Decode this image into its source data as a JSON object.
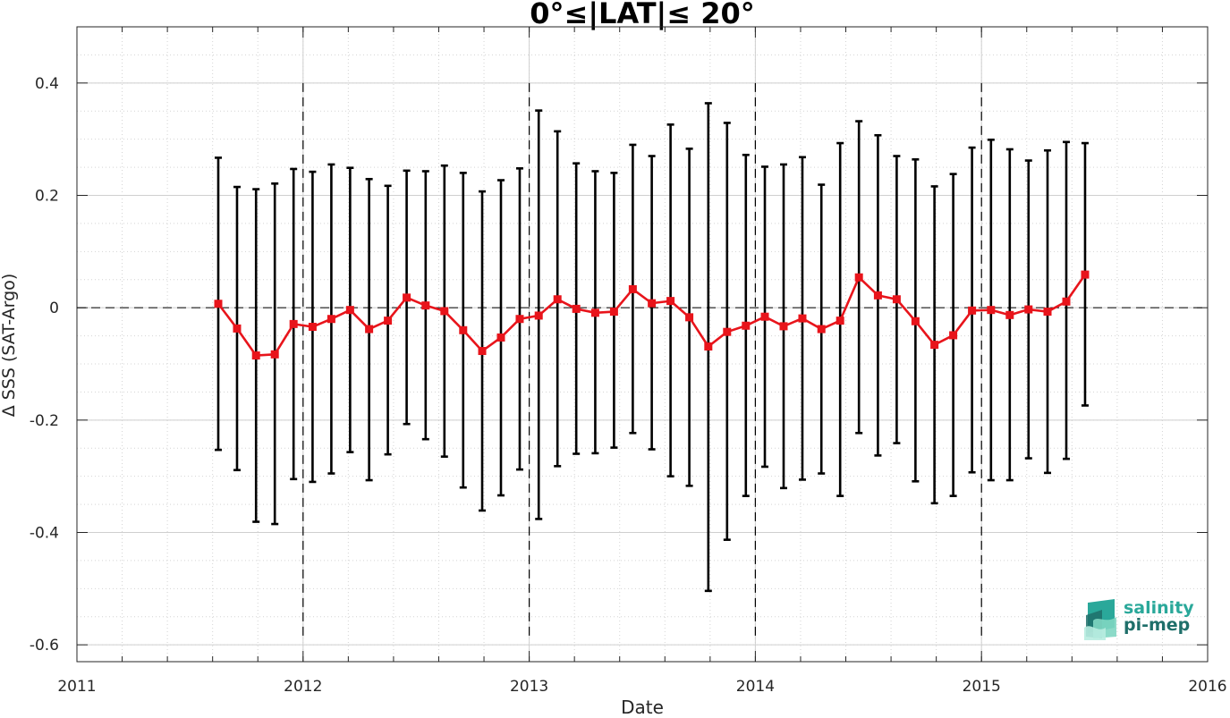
{
  "chart_data": {
    "type": "line",
    "title": "0°≤|LAT|≤ 20°",
    "xlabel": "Date",
    "ylabel": "Δ SSS (SAT-Argo)",
    "xlim": [
      2011,
      2016
    ],
    "ylim": [
      -0.63,
      0.5
    ],
    "x_ticks": [
      "2011",
      "2012",
      "2013",
      "2014",
      "2015",
      "2016"
    ],
    "y_ticks": [
      "0.4",
      "0.2",
      "0",
      "-0.2",
      "-0.4",
      "-0.6"
    ],
    "y_tick_values": [
      0.4,
      0.2,
      0,
      -0.2,
      -0.4,
      -0.6
    ],
    "year_divider_lines": [
      "2012",
      "2013",
      "2014",
      "2015"
    ],
    "grid": true,
    "minor_grid": true,
    "line_color": "#e8141b",
    "errorbar_color": "#000000",
    "zero_line": true,
    "series": [
      {
        "x": [
          "2011-08",
          "2011-09",
          "2011-10",
          "2011-11",
          "2011-12",
          "2012-01",
          "2012-02",
          "2012-03",
          "2012-04",
          "2012-05",
          "2012-06",
          "2012-07",
          "2012-08",
          "2012-09",
          "2012-10",
          "2012-11",
          "2012-12",
          "2013-01",
          "2013-02",
          "2013-03",
          "2013-04",
          "2013-05",
          "2013-06",
          "2013-07",
          "2013-08",
          "2013-09",
          "2013-10",
          "2013-11",
          "2013-12",
          "2014-01",
          "2014-02",
          "2014-03",
          "2014-04",
          "2014-05",
          "2014-06",
          "2014-07",
          "2014-08",
          "2014-09",
          "2014-10",
          "2014-11",
          "2014-12",
          "2015-01",
          "2015-02",
          "2015-03",
          "2015-04",
          "2015-05",
          "2015-06"
        ],
        "t": [
          2011.625,
          2011.708,
          2011.792,
          2011.875,
          2011.958,
          2012.042,
          2012.125,
          2012.208,
          2012.292,
          2012.375,
          2012.458,
          2012.542,
          2012.625,
          2012.708,
          2012.792,
          2012.875,
          2012.958,
          2013.042,
          2013.125,
          2013.208,
          2013.292,
          2013.375,
          2013.458,
          2013.542,
          2013.625,
          2013.708,
          2013.792,
          2013.875,
          2013.958,
          2014.042,
          2014.125,
          2014.208,
          2014.292,
          2014.375,
          2014.458,
          2014.542,
          2014.625,
          2014.708,
          2014.792,
          2014.875,
          2014.958,
          2015.042,
          2015.125,
          2015.208,
          2015.292,
          2015.375,
          2015.458
        ],
        "y": [
          0.007,
          -0.037,
          -0.085,
          -0.083,
          -0.029,
          -0.034,
          -0.02,
          -0.004,
          -0.038,
          -0.023,
          0.018,
          0.004,
          -0.006,
          -0.04,
          -0.077,
          -0.053,
          -0.02,
          -0.014,
          0.015,
          -0.002,
          -0.009,
          -0.007,
          0.033,
          0.008,
          0.012,
          -0.017,
          -0.069,
          -0.043,
          -0.032,
          -0.016,
          -0.033,
          -0.019,
          -0.038,
          -0.023,
          0.054,
          0.022,
          0.015,
          -0.024,
          -0.066,
          -0.049,
          -0.005,
          -0.004,
          -0.013,
          -0.003,
          -0.007,
          0.011,
          0.059
        ],
        "y_upper": [
          0.267,
          0.215,
          0.211,
          0.221,
          0.247,
          0.242,
          0.255,
          0.249,
          0.229,
          0.217,
          0.244,
          0.243,
          0.253,
          0.24,
          0.207,
          0.227,
          0.248,
          0.351,
          0.314,
          0.257,
          0.243,
          0.24,
          0.29,
          0.27,
          0.326,
          0.283,
          0.364,
          0.329,
          0.272,
          0.251,
          0.255,
          0.268,
          0.219,
          0.293,
          0.332,
          0.307,
          0.27,
          0.264,
          0.216,
          0.238,
          0.285,
          0.299,
          0.282,
          0.262,
          0.28,
          0.295,
          0.293
        ],
        "y_lower": [
          -0.253,
          -0.289,
          -0.381,
          -0.385,
          -0.305,
          -0.31,
          -0.295,
          -0.257,
          -0.307,
          -0.261,
          -0.207,
          -0.234,
          -0.265,
          -0.32,
          -0.361,
          -0.334,
          -0.288,
          -0.376,
          -0.282,
          -0.26,
          -0.259,
          -0.249,
          -0.223,
          -0.252,
          -0.3,
          -0.317,
          -0.504,
          -0.413,
          -0.335,
          -0.283,
          -0.321,
          -0.306,
          -0.295,
          -0.335,
          -0.223,
          -0.263,
          -0.241,
          -0.309,
          -0.348,
          -0.335,
          -0.293,
          -0.307,
          -0.307,
          -0.268,
          -0.294,
          -0.269,
          -0.174
        ]
      }
    ]
  },
  "logo": {
    "line1": "salinity",
    "line2": "pi-mep",
    "colors": [
      "#2aa89a",
      "#1f6f6a",
      "#7fd6c2"
    ]
  }
}
